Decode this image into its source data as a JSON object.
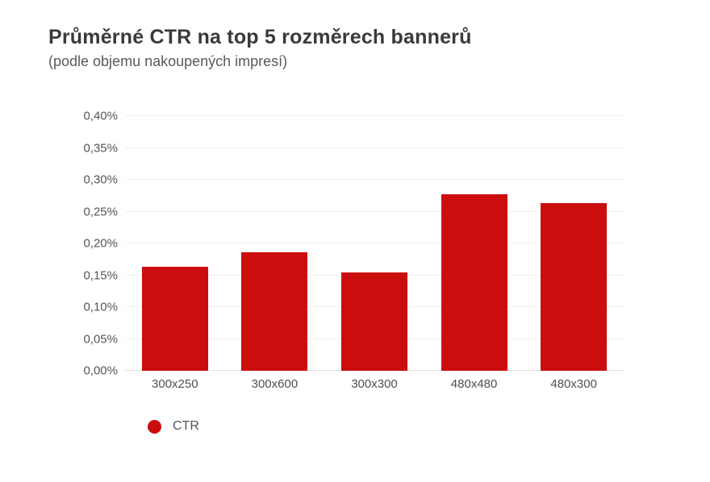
{
  "header": {
    "title": "Průměrné CTR na top 5 rozměrech bannerů",
    "subtitle": "(podle objemu nakoupených impresí)"
  },
  "chart_data": {
    "type": "bar",
    "title": "Průměrné CTR na top 5 rozměrech bannerů",
    "subtitle": "(podle objemu nakoupených impresí)",
    "categories": [
      "300x250",
      "300x600",
      "300x300",
      "480x480",
      "480x300"
    ],
    "series": [
      {
        "name": "CTR",
        "color": "#CC0D0E",
        "values_pct": [
          0.163,
          0.186,
          0.155,
          0.277,
          0.263
        ]
      }
    ],
    "ylim_pct": [
      0,
      0.4
    ],
    "y_tick_step_pct": 0.05,
    "y_tick_labels": [
      "0,00%",
      "0,05%",
      "0,10%",
      "0,15%",
      "0,20%",
      "0,25%",
      "0,30%",
      "0,35%",
      "0,40%"
    ],
    "xlabel": "",
    "ylabel": "",
    "grid": true,
    "legend": {
      "position": "bottom-left",
      "items": [
        {
          "label": "CTR",
          "color": "#CC0D0E"
        }
      ]
    }
  },
  "style": {
    "background": "#ffffff",
    "bar_color": "#CC0D0E",
    "grid_color": "#efefef",
    "axis_line_color": "#e2e2e2",
    "axis_text_color": "#555555",
    "title_color": "#3a3a3a",
    "subtitle_color": "#5a5a5a"
  }
}
